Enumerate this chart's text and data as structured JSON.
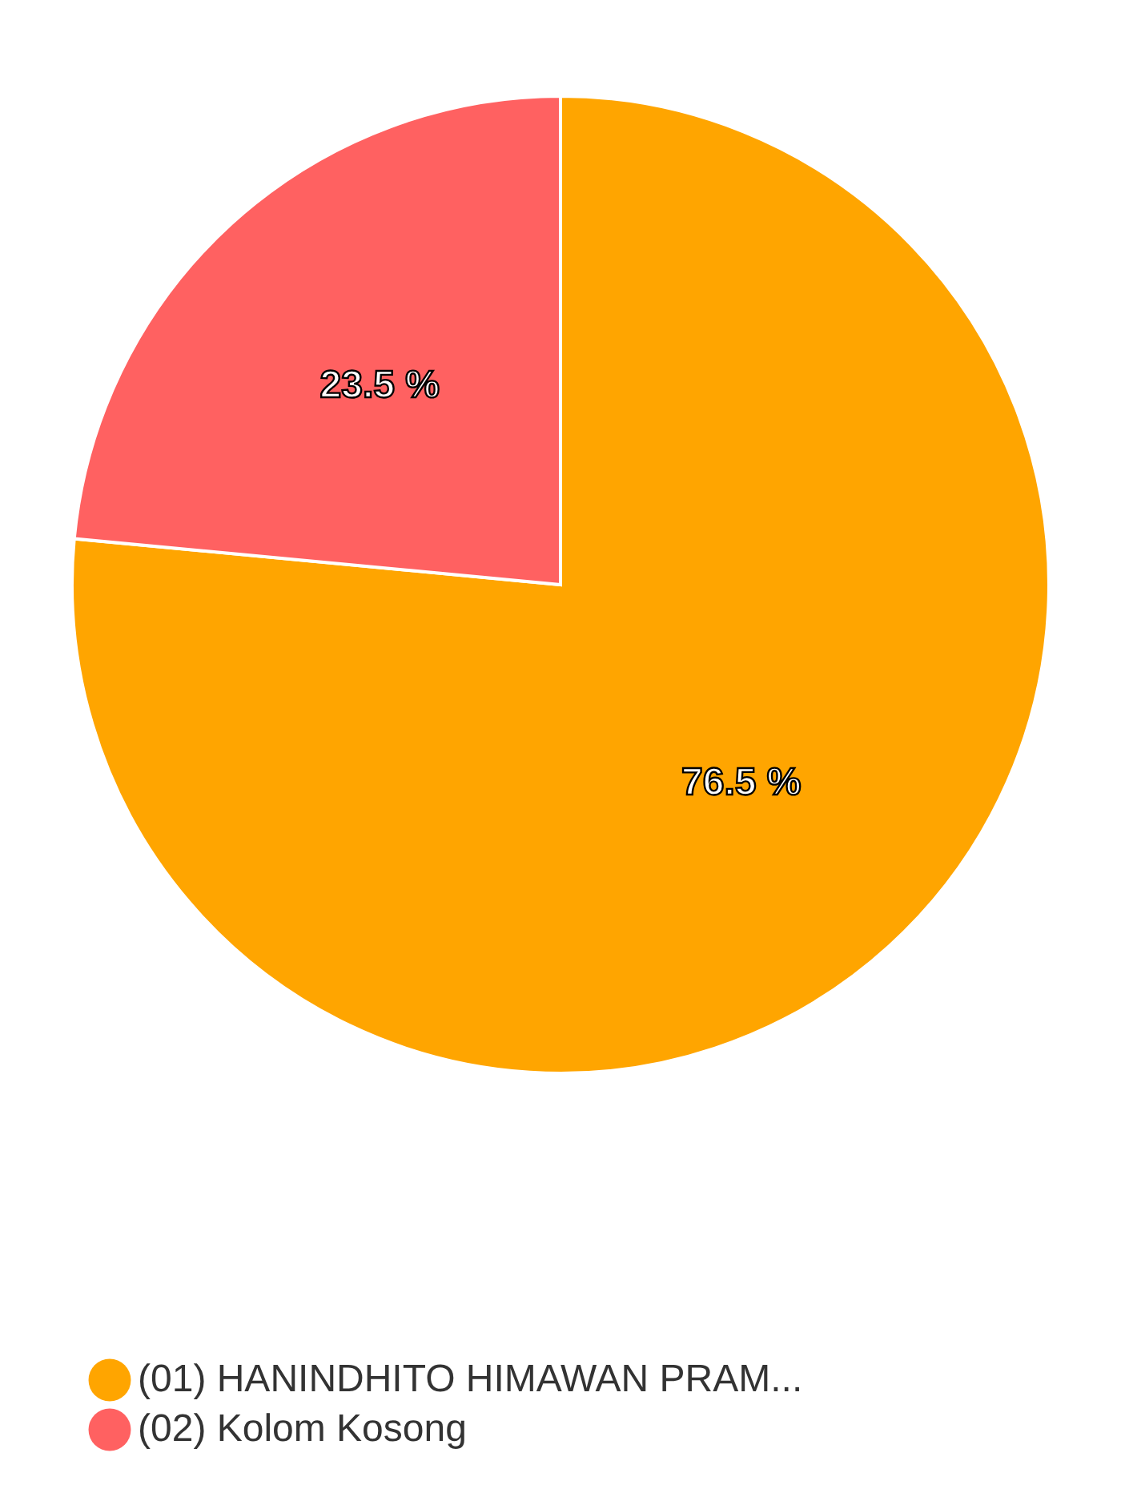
{
  "chart_data": {
    "type": "pie",
    "categories": [
      "(01) HANINDHITO HIMAWAN PRAM...",
      "(02) Kolom Kosong"
    ],
    "values": [
      76.5,
      23.5
    ],
    "colors": [
      "#ffa500",
      "#ff6161"
    ],
    "value_labels": [
      "76.5 %",
      "23.5 %"
    ],
    "legend": "bottom"
  }
}
